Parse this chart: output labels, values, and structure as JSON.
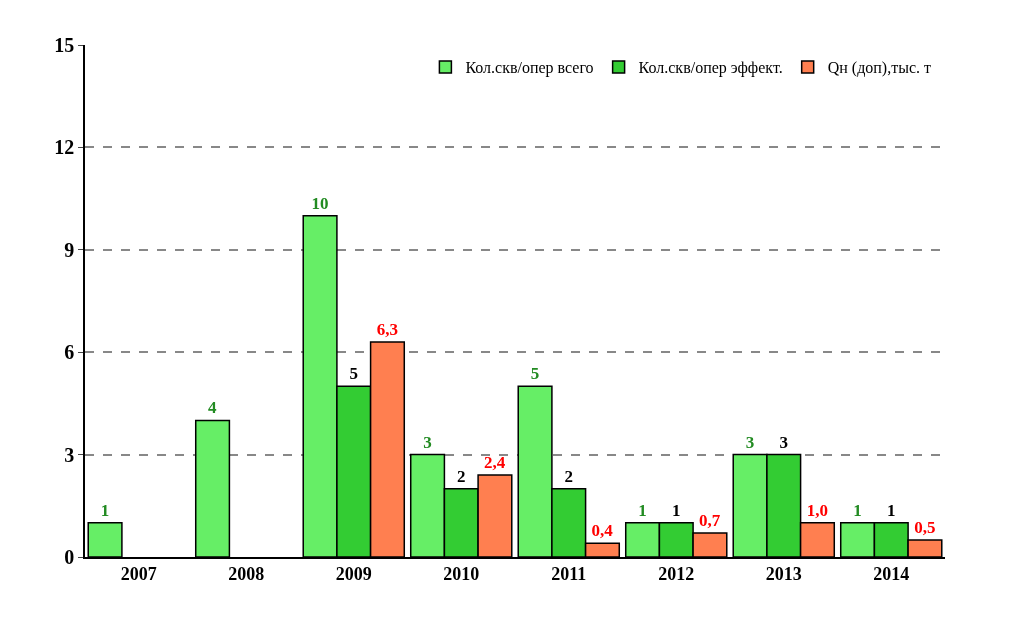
{
  "chart_data": {
    "type": "bar",
    "categories": [
      "2007",
      "2008",
      "2009",
      "2010",
      "2011",
      "2012",
      "2013",
      "2014"
    ],
    "series": [
      {
        "name": "Кол.скв/опер всего",
        "color": "#66ee66",
        "values": [
          1,
          4,
          10,
          3,
          5,
          1,
          3,
          1
        ],
        "value_labels": [
          "1",
          "4",
          "10",
          "3",
          "5",
          "1",
          "3",
          "1"
        ]
      },
      {
        "name": "Кол.скв/опер эффект.",
        "color": "#33cc33",
        "values": [
          null,
          null,
          5,
          2,
          2,
          1,
          3,
          1
        ],
        "value_labels": [
          null,
          null,
          "5",
          "2",
          "2",
          "1",
          "3",
          "1"
        ]
      },
      {
        "name": "Qн (доп),тыс. т",
        "color": "#ff7f50",
        "values": [
          null,
          null,
          6.3,
          2.4,
          0.4,
          0.7,
          1.0,
          0.5
        ],
        "value_labels": [
          null,
          null,
          "6,3",
          "2,4",
          "0,4",
          "0,7",
          "1,0",
          "0,5"
        ]
      }
    ],
    "ylim": [
      0,
      15
    ],
    "yticks": [
      0,
      3,
      6,
      9,
      12,
      15
    ],
    "grid": "y",
    "legend": "top right"
  }
}
